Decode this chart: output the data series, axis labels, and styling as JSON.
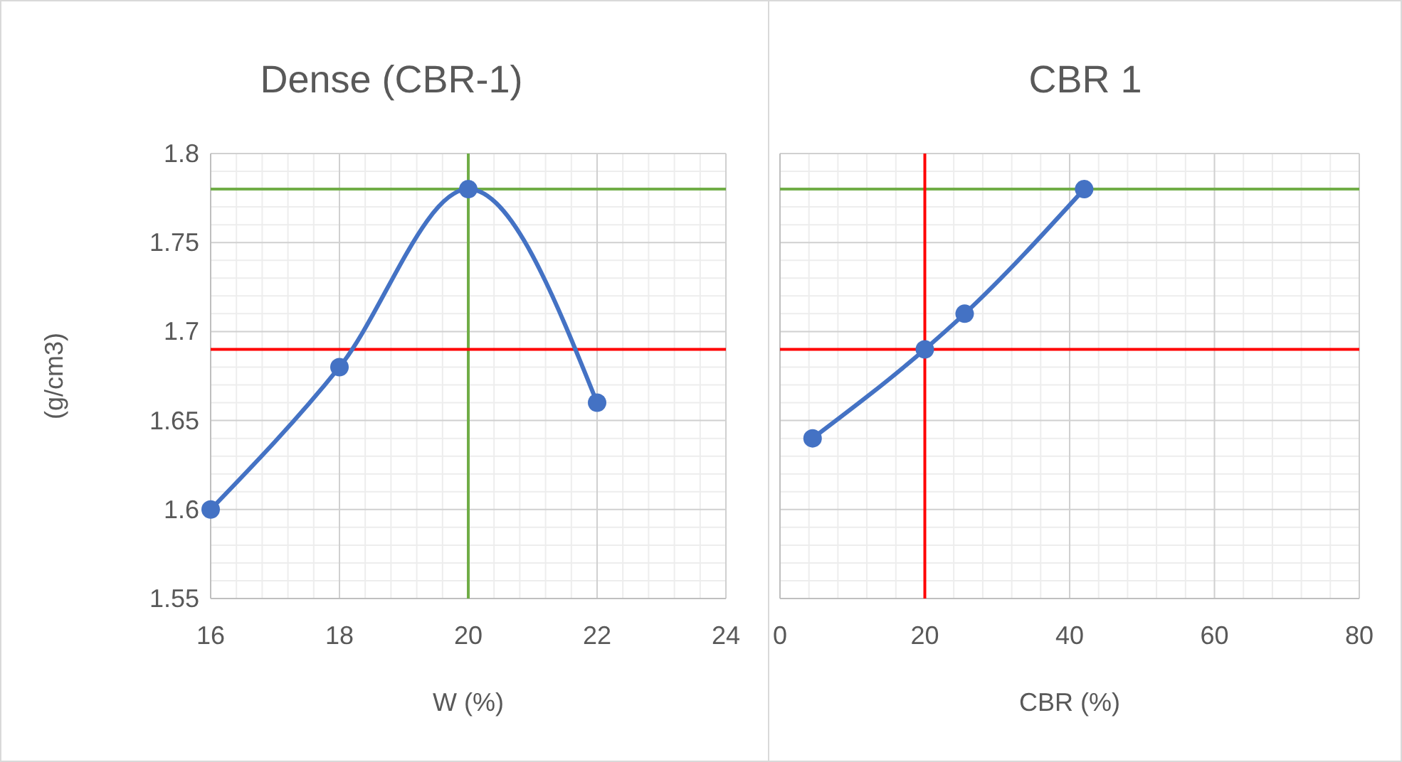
{
  "chart_data": [
    {
      "type": "line",
      "title": "Dense (CBR-1)",
      "xlabel": "W (%)",
      "ylabel": "(g/cm3)",
      "xlim": [
        16,
        24
      ],
      "xticks": [
        16,
        18,
        20,
        22,
        24
      ],
      "ylim": [
        1.55,
        1.8
      ],
      "yticks": [
        1.55,
        1.6,
        1.65,
        1.7,
        1.75,
        1.8
      ],
      "grid": true,
      "marker": "circle",
      "series": [
        {
          "color": "#4472c4",
          "x": [
            16,
            18,
            20,
            22
          ],
          "values": [
            1.6,
            1.68,
            1.78,
            1.66
          ]
        }
      ],
      "ref_lines": [
        {
          "axis": "x",
          "value": 20,
          "color": "#70ad47"
        },
        {
          "axis": "y",
          "value": 1.78,
          "color": "#70ad47"
        },
        {
          "axis": "y",
          "value": 1.69,
          "color": "#ff0000"
        }
      ]
    },
    {
      "type": "line",
      "title": "CBR 1",
      "xlabel": "CBR (%)",
      "xlim": [
        0,
        80
      ],
      "xticks": [
        0,
        20,
        40,
        60,
        80
      ],
      "ylim": [
        1.55,
        1.8
      ],
      "yticks": [
        1.55,
        1.6,
        1.65,
        1.7,
        1.75,
        1.8
      ],
      "tick_labels": "x",
      "grid": true,
      "marker": "circle",
      "series": [
        {
          "color": "#4472c4",
          "x": [
            4.5,
            20,
            25.5,
            42
          ],
          "values": [
            1.64,
            1.69,
            1.71,
            1.78
          ]
        }
      ],
      "ref_lines": [
        {
          "axis": "y",
          "value": 1.78,
          "color": "#70ad47"
        },
        {
          "axis": "y",
          "value": 1.69,
          "color": "#ff0000"
        },
        {
          "axis": "x",
          "value": 20,
          "color": "#ff0000"
        }
      ]
    }
  ]
}
